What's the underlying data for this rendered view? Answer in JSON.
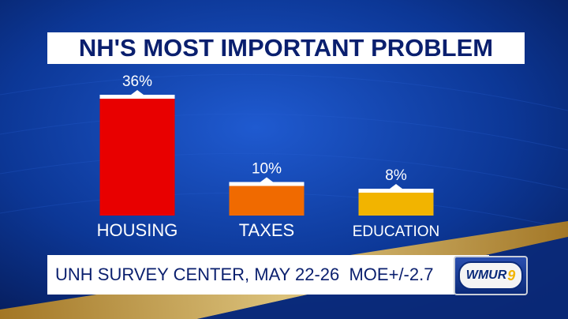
{
  "title": "NH'S MOST IMPORTANT PROBLEM",
  "footer": {
    "source": "UNH SURVEY CENTER, MAY 22-26  MOE+/-2.7",
    "logo_text": "WMUR",
    "logo_number": "9"
  },
  "colors": {
    "background": "#0a2f8c",
    "title_text": "#0a1f6e",
    "housing": "#e80000",
    "taxes": "#f06a00",
    "education": "#f2b400",
    "accent_gold": "#d7a93a"
  },
  "chart_data": {
    "type": "bar",
    "title": "NH'S MOST IMPORTANT PROBLEM",
    "categories": [
      "HOUSING",
      "TAXES",
      "EDUCATION"
    ],
    "values": [
      36,
      10,
      8
    ],
    "value_labels": [
      "36%",
      "10%",
      "8%"
    ],
    "colors": [
      "#e80000",
      "#f06a00",
      "#f2b400"
    ],
    "xlabel": "",
    "ylabel": "",
    "ylim": [
      0,
      36
    ],
    "grid": false,
    "legend": "none"
  }
}
